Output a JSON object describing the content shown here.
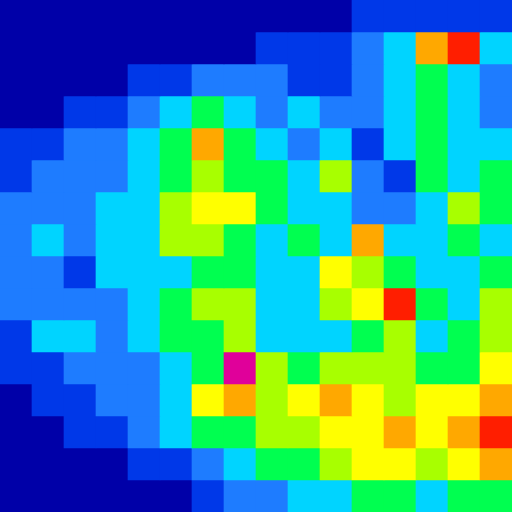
{
  "chart_data": {
    "type": "heatmap",
    "tick_labels": false,
    "grid": false,
    "colors": [
      "#0000a8",
      "#0038e8",
      "#1e7cff",
      "#00d4ff",
      "#00ff50",
      "#a8ff00",
      "#ffff00",
      "#ffa800",
      "#ff1e00",
      "#e0009a",
      "#ffffff"
    ],
    "cells": [
      [
        0,
        0,
        0,
        0,
        0,
        0,
        0,
        0,
        0,
        0,
        0,
        1,
        1,
        1,
        1,
        1
      ],
      [
        0,
        0,
        0,
        0,
        0,
        0,
        0,
        0,
        1,
        1,
        1,
        2,
        3,
        7,
        8,
        3
      ],
      [
        0,
        0,
        0,
        0,
        1,
        1,
        2,
        2,
        2,
        1,
        1,
        2,
        3,
        4,
        3,
        2
      ],
      [
        0,
        0,
        1,
        1,
        2,
        3,
        4,
        3,
        2,
        3,
        2,
        2,
        3,
        4,
        3,
        2
      ],
      [
        1,
        1,
        2,
        2,
        3,
        4,
        7,
        4,
        3,
        2,
        3,
        1,
        3,
        4,
        3,
        3
      ],
      [
        1,
        2,
        2,
        2,
        3,
        4,
        5,
        4,
        4,
        3,
        5,
        2,
        1,
        4,
        3,
        4
      ],
      [
        2,
        2,
        2,
        3,
        3,
        5,
        6,
        6,
        4,
        3,
        3,
        2,
        2,
        3,
        5,
        4
      ],
      [
        2,
        3,
        2,
        3,
        3,
        5,
        5,
        4,
        3,
        4,
        3,
        7,
        3,
        3,
        4,
        3
      ],
      [
        2,
        2,
        1,
        3,
        3,
        3,
        4,
        4,
        3,
        3,
        6,
        5,
        4,
        3,
        3,
        4
      ],
      [
        2,
        2,
        2,
        2,
        3,
        4,
        5,
        5,
        3,
        3,
        5,
        6,
        8,
        4,
        3,
        5
      ],
      [
        1,
        3,
        3,
        2,
        3,
        4,
        4,
        5,
        3,
        3,
        3,
        4,
        5,
        3,
        4,
        5
      ],
      [
        1,
        1,
        2,
        2,
        2,
        3,
        4,
        9,
        5,
        4,
        5,
        5,
        5,
        4,
        4,
        6
      ],
      [
        0,
        1,
        1,
        2,
        2,
        3,
        6,
        7,
        5,
        6,
        7,
        6,
        5,
        6,
        6,
        7
      ],
      [
        0,
        0,
        1,
        1,
        2,
        3,
        4,
        4,
        5,
        5,
        6,
        6,
        7,
        6,
        7,
        8
      ],
      [
        0,
        0,
        0,
        0,
        1,
        1,
        2,
        3,
        4,
        4,
        5,
        6,
        6,
        5,
        6,
        7
      ],
      [
        0,
        0,
        0,
        0,
        0,
        0,
        1,
        2,
        2,
        3,
        3,
        4,
        4,
        3,
        4,
        4
      ]
    ]
  }
}
